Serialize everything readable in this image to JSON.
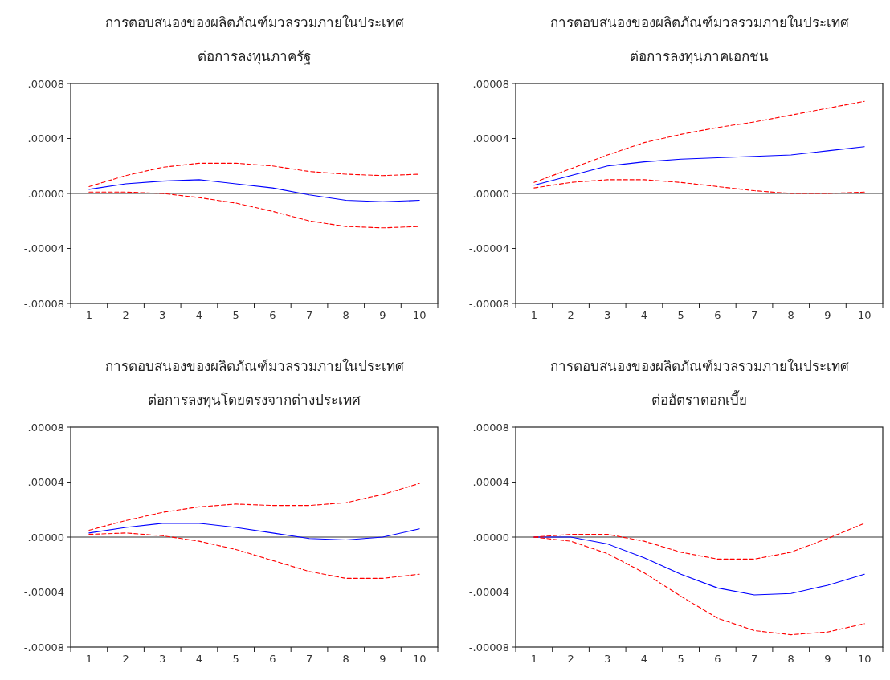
{
  "chart_data": [
    {
      "type": "line",
      "title": "การตอบสนองของผลิตภัณฑ์มวลรวมภายในประเทศ",
      "subtitle": "ต่อการลงทุนภาครัฐ",
      "categories": [
        "1",
        "2",
        "3",
        "4",
        "5",
        "6",
        "7",
        "8",
        "9",
        "10"
      ],
      "series": [
        {
          "color": "#0000ff",
          "line_style": "solid",
          "values": [
            3e-06,
            7e-06,
            9e-06,
            1e-05,
            7e-06,
            4e-06,
            -1e-06,
            -5e-06,
            -6e-06,
            -5e-06
          ]
        },
        {
          "color": "#ff0000",
          "line_style": "dashed",
          "values": [
            5e-06,
            1.3e-05,
            1.9e-05,
            2.2e-05,
            2.2e-05,
            2e-05,
            1.6e-05,
            1.4e-05,
            1.3e-05,
            1.4e-05
          ]
        },
        {
          "color": "#ff0000",
          "line_style": "dashed",
          "values": [
            1e-06,
            1e-06,
            0,
            -3e-06,
            -7e-06,
            -1.3e-05,
            -2e-05,
            -2.4e-05,
            -2.5e-05,
            -2.4e-05
          ]
        }
      ],
      "ylim": [
        -8e-05,
        8e-05
      ],
      "yticks": [
        {
          "value": -8e-05,
          "label": "-.00008"
        },
        {
          "value": -4e-05,
          "label": "-.00004"
        },
        {
          "value": 0,
          "label": ".00000"
        },
        {
          "value": 4e-05,
          "label": ".00004"
        },
        {
          "value": 8e-05,
          "label": ".00008"
        }
      ],
      "ref_lines": [
        {
          "axis": "y",
          "value": 0,
          "color": "#333333"
        }
      ],
      "grid": false
    },
    {
      "type": "line",
      "title": "การตอบสนองของผลิตภัณฑ์มวลรวมภายในประเทศ",
      "subtitle": "ต่อการลงทุนภาคเอกชน",
      "categories": [
        "1",
        "2",
        "3",
        "4",
        "5",
        "6",
        "7",
        "8",
        "9",
        "10"
      ],
      "series": [
        {
          "color": "#0000ff",
          "line_style": "solid",
          "values": [
            6e-06,
            1.3e-05,
            2e-05,
            2.3e-05,
            2.5e-05,
            2.6e-05,
            2.7e-05,
            2.8e-05,
            3.1e-05,
            3.4e-05
          ]
        },
        {
          "color": "#ff0000",
          "line_style": "dashed",
          "values": [
            8e-06,
            1.8e-05,
            2.8e-05,
            3.7e-05,
            4.3e-05,
            4.8e-05,
            5.2e-05,
            5.7e-05,
            6.2e-05,
            6.7e-05
          ]
        },
        {
          "color": "#ff0000",
          "line_style": "dashed",
          "values": [
            4e-06,
            8e-06,
            1e-05,
            1e-05,
            8e-06,
            5e-06,
            2e-06,
            0,
            0,
            1e-06
          ]
        }
      ],
      "ylim": [
        -8e-05,
        8e-05
      ],
      "yticks": [
        {
          "value": -8e-05,
          "label": "-.00008"
        },
        {
          "value": -4e-05,
          "label": "-.00004"
        },
        {
          "value": 0,
          "label": ".00000"
        },
        {
          "value": 4e-05,
          "label": ".00004"
        },
        {
          "value": 8e-05,
          "label": ".00008"
        }
      ],
      "ref_lines": [
        {
          "axis": "y",
          "value": 0,
          "color": "#333333"
        }
      ],
      "grid": false
    },
    {
      "type": "line",
      "title": "การตอบสนองของผลิตภัณฑ์มวลรวมภายในประเทศ",
      "subtitle": "ต่อการลงทุนโดยตรงจากต่างประเทศ",
      "categories": [
        "1",
        "2",
        "3",
        "4",
        "5",
        "6",
        "7",
        "8",
        "9",
        "10"
      ],
      "series": [
        {
          "color": "#0000ff",
          "line_style": "solid",
          "values": [
            3e-06,
            7e-06,
            1e-05,
            1e-05,
            7e-06,
            3e-06,
            -1e-06,
            -2e-06,
            0,
            6e-06
          ]
        },
        {
          "color": "#ff0000",
          "line_style": "dashed",
          "values": [
            5e-06,
            1.2e-05,
            1.8e-05,
            2.2e-05,
            2.4e-05,
            2.3e-05,
            2.3e-05,
            2.5e-05,
            3.1e-05,
            3.9e-05
          ]
        },
        {
          "color": "#ff0000",
          "line_style": "dashed",
          "values": [
            2e-06,
            3e-06,
            1e-06,
            -3e-06,
            -9e-06,
            -1.7e-05,
            -2.5e-05,
            -3e-05,
            -3e-05,
            -2.7e-05
          ]
        }
      ],
      "ylim": [
        -8e-05,
        8e-05
      ],
      "yticks": [
        {
          "value": -8e-05,
          "label": "-.00008"
        },
        {
          "value": -4e-05,
          "label": "-.00004"
        },
        {
          "value": 0,
          "label": ".00000"
        },
        {
          "value": 4e-05,
          "label": ".00004"
        },
        {
          "value": 8e-05,
          "label": ".00008"
        }
      ],
      "ref_lines": [
        {
          "axis": "y",
          "value": 0,
          "color": "#333333"
        }
      ],
      "grid": false
    },
    {
      "type": "line",
      "title": "การตอบสนองของผลิตภัณฑ์มวลรวมภายในประเทศ",
      "subtitle": "ต่ออัตราดอกเบี้ย",
      "categories": [
        "1",
        "2",
        "3",
        "4",
        "5",
        "6",
        "7",
        "8",
        "9",
        "10"
      ],
      "series": [
        {
          "color": "#0000ff",
          "line_style": "solid",
          "values": [
            0,
            0,
            -5e-06,
            -1.5e-05,
            -2.7e-05,
            -3.7e-05,
            -4.2e-05,
            -4.1e-05,
            -3.5e-05,
            -2.7e-05
          ]
        },
        {
          "color": "#ff0000",
          "line_style": "dashed",
          "values": [
            0,
            2e-06,
            2e-06,
            -3e-06,
            -1.1e-05,
            -1.6e-05,
            -1.6e-05,
            -1.1e-05,
            -1e-06,
            1e-05
          ]
        },
        {
          "color": "#ff0000",
          "line_style": "dashed",
          "values": [
            0,
            -3e-06,
            -1.2e-05,
            -2.6e-05,
            -4.3e-05,
            -5.9e-05,
            -6.8e-05,
            -7.1e-05,
            -6.9e-05,
            -6.3e-05
          ]
        }
      ],
      "ylim": [
        -8e-05,
        8e-05
      ],
      "yticks": [
        {
          "value": -8e-05,
          "label": "-.00008"
        },
        {
          "value": -4e-05,
          "label": "-.00004"
        },
        {
          "value": 0,
          "label": ".00000"
        },
        {
          "value": 4e-05,
          "label": ".00004"
        },
        {
          "value": 8e-05,
          "label": ".00008"
        }
      ],
      "ref_lines": [
        {
          "axis": "y",
          "value": 0,
          "color": "#333333"
        }
      ],
      "grid": false
    }
  ]
}
